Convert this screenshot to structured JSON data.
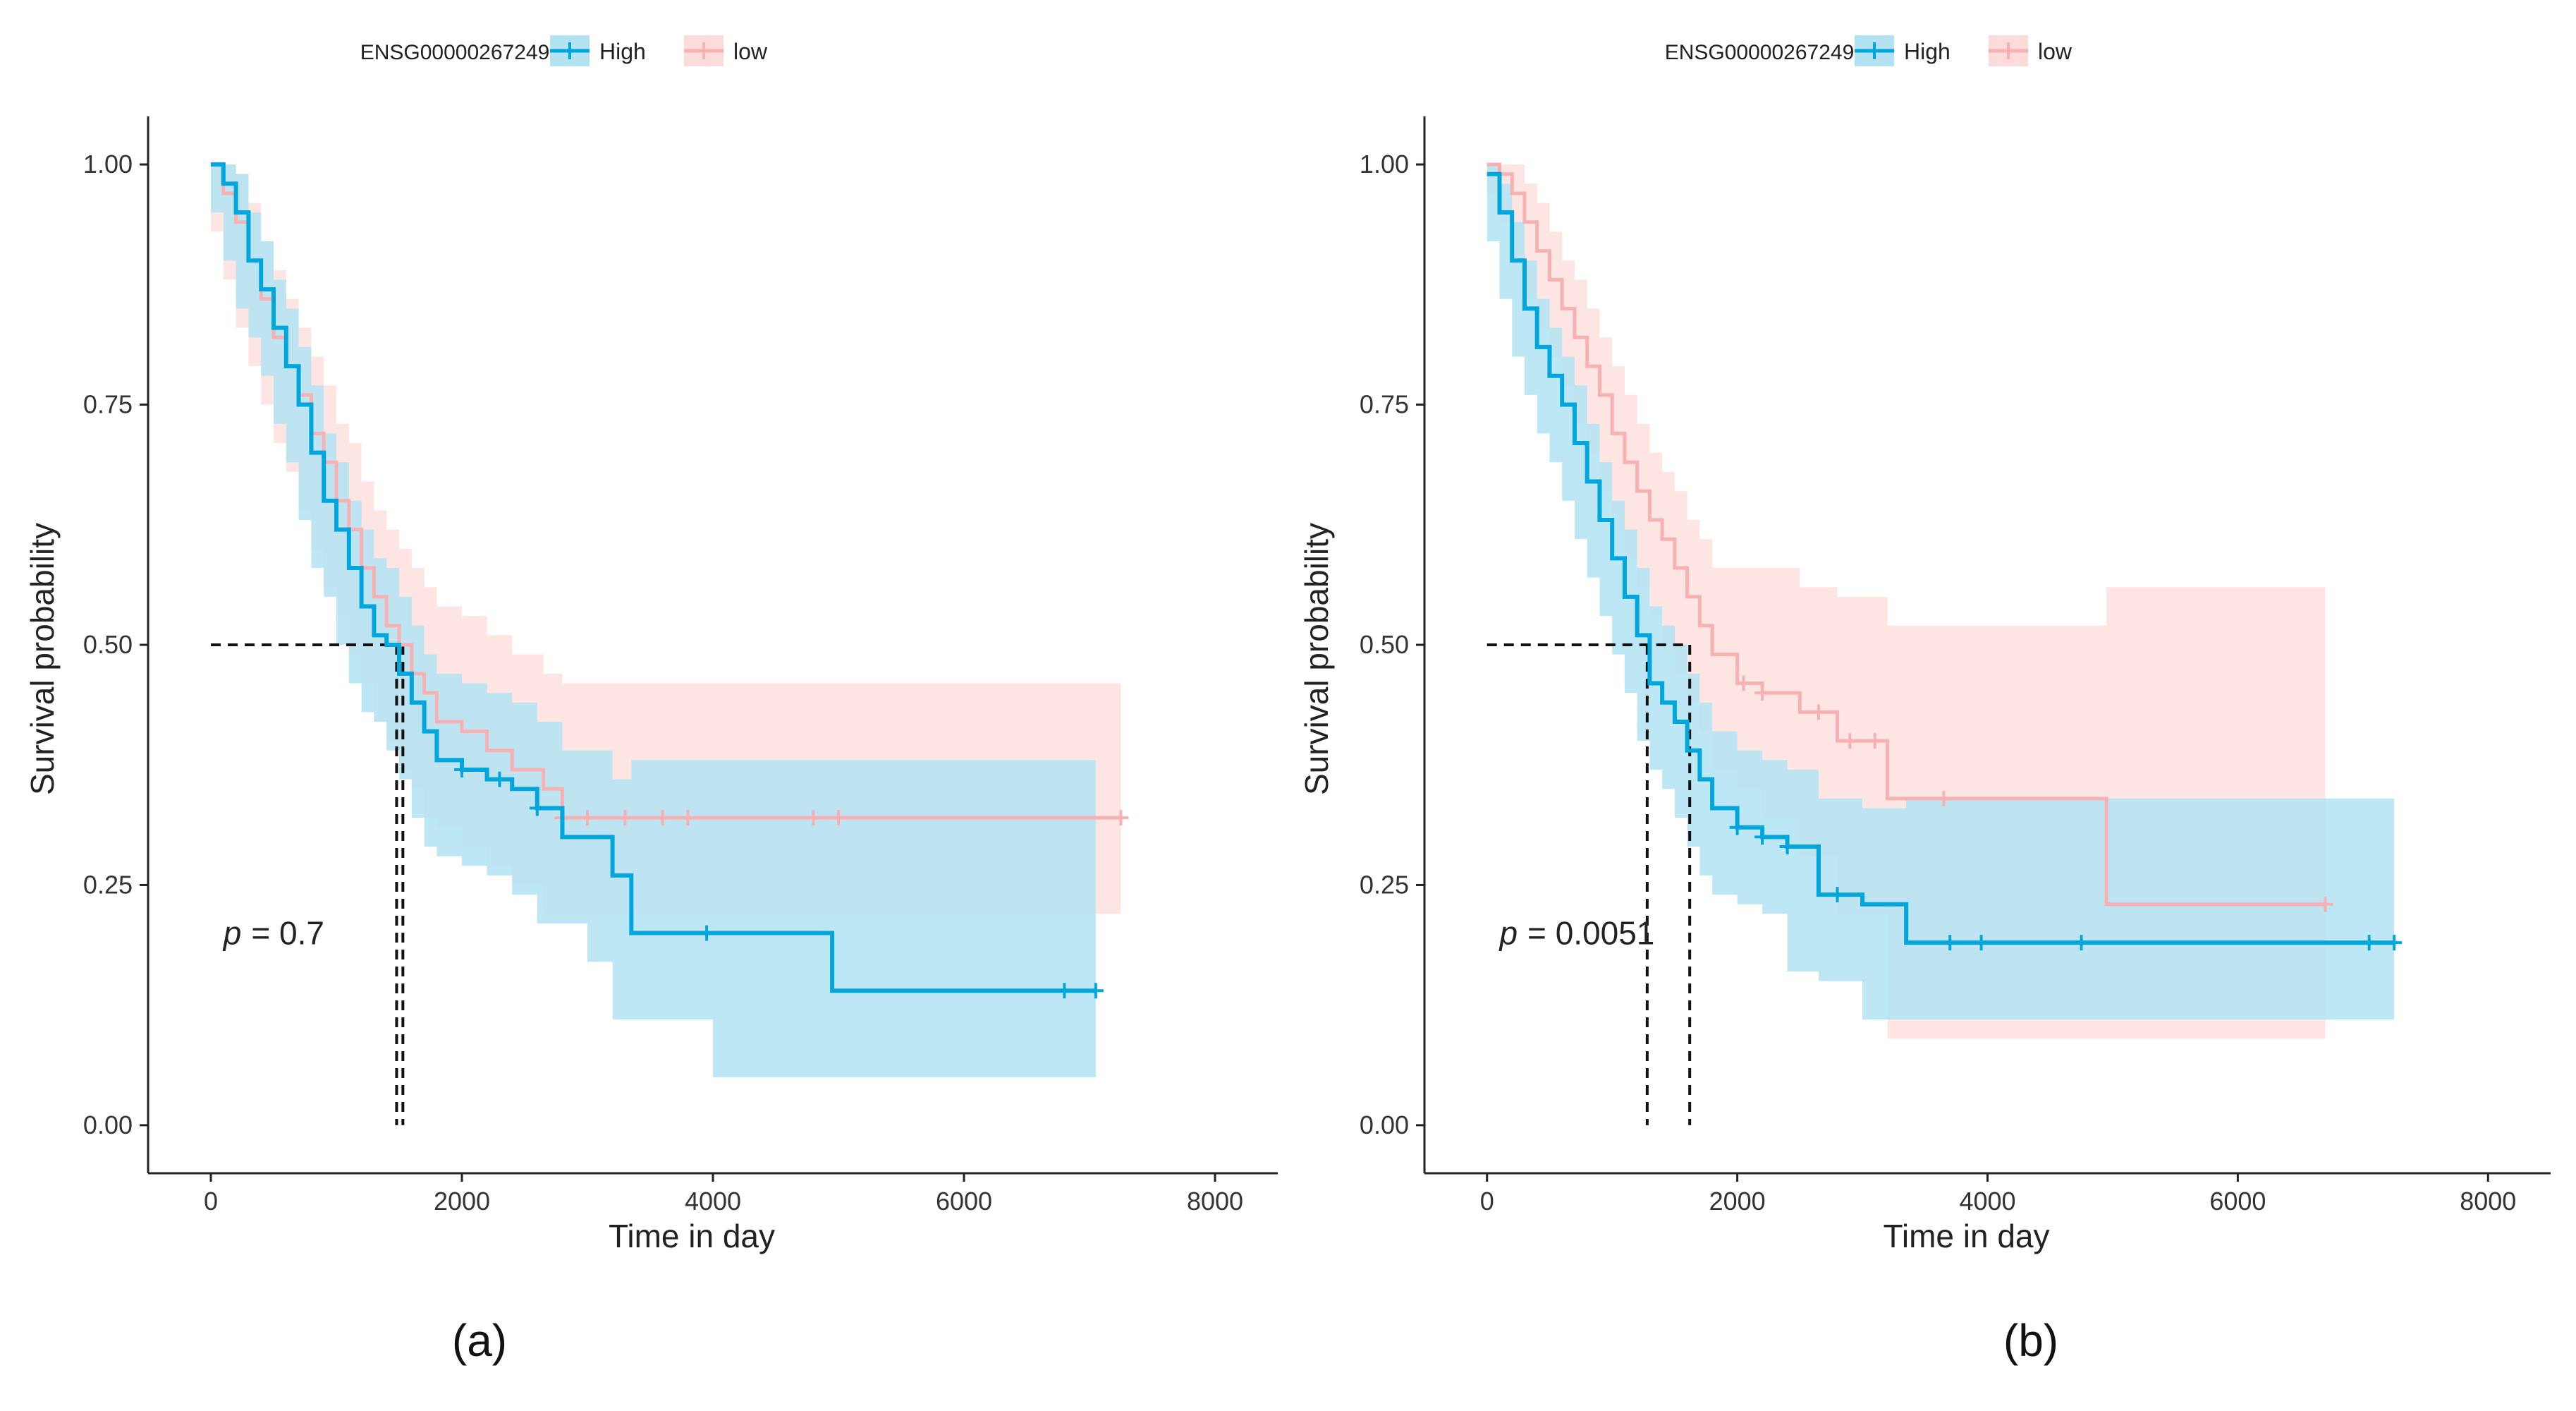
{
  "figure": {
    "colors": {
      "high": "#00a6dc",
      "high_fill": "#b3e3f3",
      "low": "#f8b1b2",
      "low_fill": "#fcdcdb",
      "axis": "#222222",
      "text": "#222222"
    }
  },
  "chart_data": [
    {
      "type": "line",
      "subtype": "kaplan-meier",
      "panel_label": "(a)",
      "legend": {
        "title": "ENSG00000267249",
        "position": "top",
        "entries": [
          "High",
          "low"
        ]
      },
      "xlabel": "Time in day",
      "ylabel": "Survival probability",
      "xlim": [
        -500,
        8500
      ],
      "ylim": [
        -0.05,
        1.05
      ],
      "xticks": [
        0,
        2000,
        4000,
        6000,
        8000
      ],
      "xtick_labels": [
        "0",
        "2000",
        "4000",
        "6000",
        "8000"
      ],
      "yticks": [
        0.0,
        0.25,
        0.5,
        0.75,
        1.0
      ],
      "ytick_labels": [
        "0.00",
        "0.25",
        "0.50",
        "0.75",
        "1.00"
      ],
      "pvalue": {
        "prefix": "p",
        "value": "= 0.7",
        "x": 100,
        "y": 0.2
      },
      "median": {
        "y": 0.5,
        "x_values": [
          1480,
          1530
        ]
      },
      "series": [
        {
          "name": "High",
          "x": [
            0,
            100,
            200,
            300,
            400,
            500,
            600,
            700,
            800,
            900,
            1000,
            1100,
            1200,
            1300,
            1400,
            1500,
            1600,
            1700,
            1800,
            2000,
            2200,
            2400,
            2600,
            2800,
            3000,
            3200,
            3350,
            4000,
            4950,
            7050
          ],
          "y": [
            1.0,
            0.98,
            0.95,
            0.9,
            0.87,
            0.83,
            0.79,
            0.75,
            0.7,
            0.65,
            0.62,
            0.58,
            0.54,
            0.51,
            0.5,
            0.47,
            0.44,
            0.41,
            0.38,
            0.37,
            0.36,
            0.35,
            0.33,
            0.3,
            0.3,
            0.26,
            0.2,
            0.2,
            0.14,
            0.14
          ],
          "ci_upper": [
            1.0,
            1.0,
            0.99,
            0.95,
            0.92,
            0.88,
            0.85,
            0.81,
            0.77,
            0.72,
            0.69,
            0.65,
            0.62,
            0.59,
            0.58,
            0.55,
            0.52,
            0.49,
            0.47,
            0.46,
            0.45,
            0.44,
            0.42,
            0.39,
            0.39,
            0.36,
            0.38,
            0.38,
            0.38,
            0.38
          ],
          "ci_lower": [
            1.0,
            0.95,
            0.9,
            0.85,
            0.82,
            0.78,
            0.73,
            0.69,
            0.63,
            0.58,
            0.55,
            0.5,
            0.46,
            0.43,
            0.42,
            0.39,
            0.36,
            0.32,
            0.29,
            0.28,
            0.27,
            0.26,
            0.24,
            0.21,
            0.21,
            0.17,
            0.11,
            0.11,
            0.05,
            0.05
          ],
          "censor_x": [
            2000,
            2300,
            2600,
            3950,
            6800,
            7050
          ]
        },
        {
          "name": "low",
          "x": [
            0,
            100,
            200,
            300,
            400,
            500,
            600,
            700,
            800,
            900,
            1000,
            1100,
            1200,
            1300,
            1400,
            1500,
            1600,
            1700,
            1800,
            2000,
            2200,
            2400,
            2650,
            2800,
            7250
          ],
          "y": [
            1.0,
            0.97,
            0.94,
            0.9,
            0.86,
            0.82,
            0.79,
            0.76,
            0.72,
            0.69,
            0.65,
            0.62,
            0.58,
            0.55,
            0.52,
            0.5,
            0.47,
            0.45,
            0.42,
            0.41,
            0.39,
            0.37,
            0.35,
            0.32,
            0.32
          ],
          "ci_upper": [
            1.0,
            1.0,
            0.99,
            0.96,
            0.92,
            0.89,
            0.86,
            0.83,
            0.8,
            0.77,
            0.73,
            0.71,
            0.67,
            0.64,
            0.62,
            0.6,
            0.58,
            0.56,
            0.54,
            0.53,
            0.51,
            0.49,
            0.47,
            0.46,
            0.47
          ],
          "ci_lower": [
            1.0,
            0.93,
            0.88,
            0.83,
            0.79,
            0.75,
            0.71,
            0.68,
            0.64,
            0.6,
            0.56,
            0.53,
            0.49,
            0.46,
            0.42,
            0.4,
            0.37,
            0.35,
            0.32,
            0.31,
            0.29,
            0.27,
            0.25,
            0.22,
            0.22
          ],
          "censor_x": [
            2800,
            3000,
            3300,
            3600,
            3800,
            4800,
            5000,
            7250
          ]
        }
      ]
    },
    {
      "type": "line",
      "subtype": "kaplan-meier",
      "panel_label": "(b)",
      "legend": {
        "title": "ENSG00000267249",
        "position": "top",
        "entries": [
          "High",
          "low"
        ]
      },
      "xlabel": "Time in day",
      "ylabel": "Survival probability",
      "xlim": [
        -500,
        8500
      ],
      "ylim": [
        -0.05,
        1.05
      ],
      "xticks": [
        0,
        2000,
        4000,
        6000,
        8000
      ],
      "xtick_labels": [
        "0",
        "2000",
        "4000",
        "6000",
        "8000"
      ],
      "yticks": [
        0.0,
        0.25,
        0.5,
        0.75,
        1.0
      ],
      "ytick_labels": [
        "0.00",
        "0.25",
        "0.50",
        "0.75",
        "1.00"
      ],
      "pvalue": {
        "prefix": "p",
        "value": "= 0.0051",
        "x": 100,
        "y": 0.2
      },
      "median": {
        "y": 0.5,
        "x_values": [
          1280,
          1620
        ]
      },
      "series": [
        {
          "name": "High",
          "x": [
            0,
            100,
            200,
            300,
            400,
            500,
            600,
            700,
            800,
            900,
            1000,
            1100,
            1200,
            1300,
            1400,
            1500,
            1600,
            1700,
            1800,
            2000,
            2200,
            2400,
            2650,
            3000,
            3350,
            7250
          ],
          "y": [
            0.99,
            0.95,
            0.9,
            0.85,
            0.81,
            0.78,
            0.75,
            0.71,
            0.67,
            0.63,
            0.59,
            0.55,
            0.51,
            0.46,
            0.44,
            0.42,
            0.39,
            0.36,
            0.33,
            0.31,
            0.3,
            0.29,
            0.24,
            0.23,
            0.19,
            0.19
          ],
          "ci_upper": [
            1.0,
            0.98,
            0.94,
            0.9,
            0.86,
            0.83,
            0.8,
            0.77,
            0.73,
            0.69,
            0.65,
            0.62,
            0.58,
            0.54,
            0.52,
            0.5,
            0.47,
            0.44,
            0.41,
            0.39,
            0.38,
            0.37,
            0.34,
            0.33,
            0.34,
            0.34
          ],
          "ci_lower": [
            0.98,
            0.92,
            0.86,
            0.8,
            0.76,
            0.72,
            0.69,
            0.65,
            0.61,
            0.57,
            0.53,
            0.49,
            0.45,
            0.4,
            0.37,
            0.35,
            0.32,
            0.29,
            0.26,
            0.24,
            0.23,
            0.22,
            0.16,
            0.15,
            0.11,
            0.11
          ],
          "censor_x": [
            2000,
            2200,
            2400,
            2800,
            3700,
            3950,
            4750,
            7050,
            7250
          ]
        },
        {
          "name": "low",
          "x": [
            0,
            100,
            200,
            300,
            400,
            500,
            600,
            700,
            800,
            900,
            1000,
            1100,
            1200,
            1300,
            1400,
            1500,
            1600,
            1700,
            1800,
            2000,
            2200,
            2500,
            2800,
            3200,
            4950,
            6700
          ],
          "y": [
            1.0,
            0.99,
            0.97,
            0.94,
            0.91,
            0.88,
            0.85,
            0.82,
            0.79,
            0.76,
            0.72,
            0.69,
            0.66,
            0.63,
            0.61,
            0.58,
            0.55,
            0.52,
            0.49,
            0.46,
            0.45,
            0.43,
            0.4,
            0.34,
            0.23,
            0.23
          ],
          "ci_upper": [
            1.0,
            1.0,
            1.0,
            0.98,
            0.96,
            0.93,
            0.9,
            0.88,
            0.85,
            0.82,
            0.79,
            0.76,
            0.73,
            0.7,
            0.68,
            0.66,
            0.63,
            0.61,
            0.58,
            0.58,
            0.58,
            0.56,
            0.55,
            0.52,
            0.56,
            0.56
          ],
          "ci_lower": [
            1.0,
            0.97,
            0.94,
            0.9,
            0.86,
            0.83,
            0.8,
            0.77,
            0.73,
            0.7,
            0.66,
            0.62,
            0.59,
            0.56,
            0.53,
            0.5,
            0.47,
            0.44,
            0.41,
            0.37,
            0.35,
            0.32,
            0.28,
            0.22,
            0.09,
            0.09
          ],
          "censor_x": [
            2050,
            2200,
            2650,
            2900,
            3100,
            3650,
            6700
          ]
        }
      ]
    }
  ]
}
